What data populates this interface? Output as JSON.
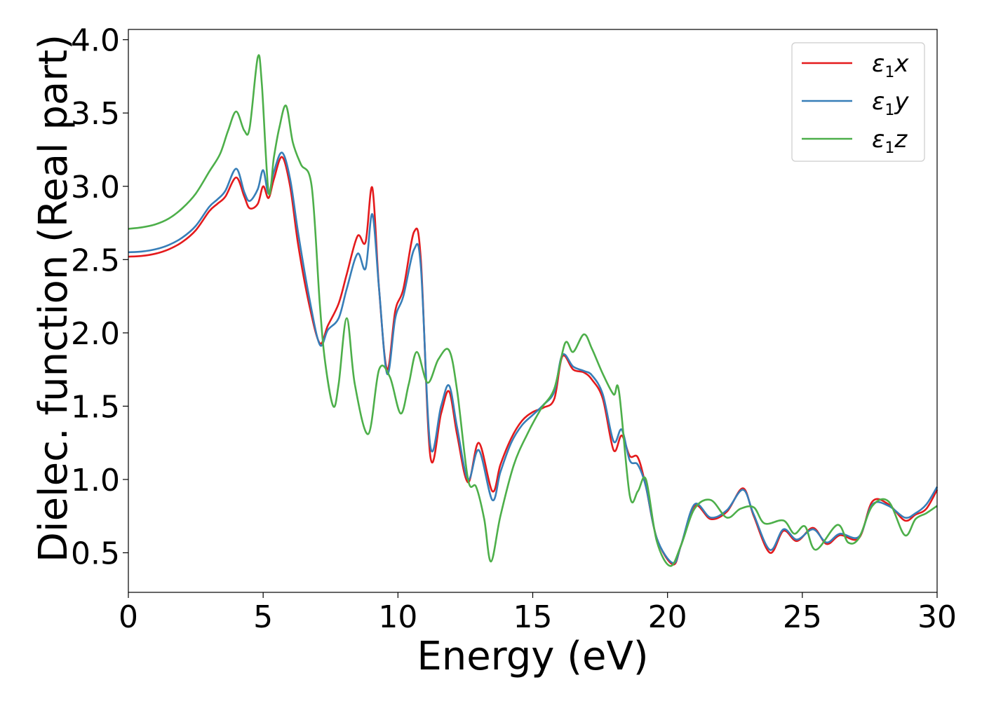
{
  "chart_data": {
    "type": "line",
    "xlabel": "Energy (eV)",
    "ylabel": "Dielec. function (Real part)",
    "xlim": [
      0,
      30
    ],
    "ylim": [
      0.23,
      4.07
    ],
    "xticks": [
      0,
      5,
      10,
      15,
      20,
      25,
      30
    ],
    "yticks": [
      0.5,
      1.0,
      1.5,
      2.0,
      2.5,
      3.0,
      3.5,
      4.0
    ],
    "xtick_labels": [
      "0",
      "5",
      "10",
      "15",
      "20",
      "25",
      "30"
    ],
    "ytick_labels": [
      "0.5",
      "1.0",
      "1.5",
      "2.0",
      "2.5",
      "3.0",
      "3.5",
      "4.0"
    ],
    "grid": false,
    "legend_position": "top-right",
    "series": [
      {
        "name": "ε1x",
        "symbol": "ε",
        "subscript": "1",
        "suffix": "x",
        "color": "#e41a1c",
        "points": [
          [
            0,
            2.52
          ],
          [
            0.5,
            2.525
          ],
          [
            1,
            2.54
          ],
          [
            1.5,
            2.57
          ],
          [
            2,
            2.62
          ],
          [
            2.5,
            2.7
          ],
          [
            3,
            2.83
          ],
          [
            3.3,
            2.88
          ],
          [
            3.6,
            2.93
          ],
          [
            4,
            3.06
          ],
          [
            4.3,
            2.93
          ],
          [
            4.5,
            2.85
          ],
          [
            4.8,
            2.88
          ],
          [
            5.0,
            3.0
          ],
          [
            5.2,
            2.92
          ],
          [
            5.4,
            3.05
          ],
          [
            5.7,
            3.2
          ],
          [
            6.0,
            3.0
          ],
          [
            6.3,
            2.6
          ],
          [
            6.7,
            2.2
          ],
          [
            7.1,
            1.93
          ],
          [
            7.4,
            2.05
          ],
          [
            7.8,
            2.2
          ],
          [
            8.1,
            2.4
          ],
          [
            8.5,
            2.66
          ],
          [
            8.8,
            2.62
          ],
          [
            9.05,
            2.99
          ],
          [
            9.3,
            2.3
          ],
          [
            9.6,
            1.75
          ],
          [
            9.9,
            2.15
          ],
          [
            10.2,
            2.3
          ],
          [
            10.6,
            2.69
          ],
          [
            10.85,
            2.5
          ],
          [
            11.2,
            1.16
          ],
          [
            11.6,
            1.45
          ],
          [
            11.9,
            1.6
          ],
          [
            12.2,
            1.3
          ],
          [
            12.6,
            0.98
          ],
          [
            13.0,
            1.25
          ],
          [
            13.5,
            0.92
          ],
          [
            13.8,
            1.1
          ],
          [
            14.2,
            1.28
          ],
          [
            14.6,
            1.4
          ],
          [
            15.0,
            1.46
          ],
          [
            15.4,
            1.49
          ],
          [
            15.8,
            1.55
          ],
          [
            16.1,
            1.84
          ],
          [
            16.5,
            1.75
          ],
          [
            16.9,
            1.73
          ],
          [
            17.2,
            1.68
          ],
          [
            17.6,
            1.55
          ],
          [
            18.0,
            1.2
          ],
          [
            18.3,
            1.3
          ],
          [
            18.6,
            1.16
          ],
          [
            18.9,
            1.15
          ],
          [
            19.2,
            0.95
          ],
          [
            19.6,
            0.6
          ],
          [
            20.2,
            0.42
          ],
          [
            20.5,
            0.55
          ],
          [
            21.0,
            0.82
          ],
          [
            21.6,
            0.73
          ],
          [
            22.2,
            0.78
          ],
          [
            22.8,
            0.94
          ],
          [
            23.2,
            0.75
          ],
          [
            23.8,
            0.5
          ],
          [
            24.3,
            0.65
          ],
          [
            24.8,
            0.58
          ],
          [
            25.4,
            0.67
          ],
          [
            25.9,
            0.56
          ],
          [
            26.4,
            0.62
          ],
          [
            27.1,
            0.6
          ],
          [
            27.6,
            0.85
          ],
          [
            28.2,
            0.83
          ],
          [
            28.8,
            0.72
          ],
          [
            29.2,
            0.76
          ],
          [
            29.6,
            0.8
          ],
          [
            30.0,
            0.93
          ]
        ]
      },
      {
        "name": "ε1y",
        "symbol": "ε",
        "subscript": "1",
        "suffix": "y",
        "color": "#377eb8",
        "points": [
          [
            0,
            2.55
          ],
          [
            0.5,
            2.555
          ],
          [
            1,
            2.57
          ],
          [
            1.5,
            2.6
          ],
          [
            2,
            2.65
          ],
          [
            2.5,
            2.73
          ],
          [
            3,
            2.86
          ],
          [
            3.3,
            2.91
          ],
          [
            3.6,
            2.97
          ],
          [
            4,
            3.12
          ],
          [
            4.3,
            2.96
          ],
          [
            4.5,
            2.9
          ],
          [
            4.8,
            2.98
          ],
          [
            5.0,
            3.11
          ],
          [
            5.2,
            2.95
          ],
          [
            5.4,
            3.1
          ],
          [
            5.7,
            3.23
          ],
          [
            6.0,
            3.05
          ],
          [
            6.3,
            2.68
          ],
          [
            6.7,
            2.25
          ],
          [
            7.1,
            1.92
          ],
          [
            7.4,
            2.02
          ],
          [
            7.8,
            2.1
          ],
          [
            8.1,
            2.3
          ],
          [
            8.5,
            2.54
          ],
          [
            8.8,
            2.44
          ],
          [
            9.05,
            2.81
          ],
          [
            9.3,
            2.3
          ],
          [
            9.6,
            1.72
          ],
          [
            9.9,
            2.1
          ],
          [
            10.2,
            2.25
          ],
          [
            10.6,
            2.57
          ],
          [
            10.85,
            2.45
          ],
          [
            11.2,
            1.23
          ],
          [
            11.6,
            1.5
          ],
          [
            11.9,
            1.64
          ],
          [
            12.2,
            1.35
          ],
          [
            12.6,
            1.0
          ],
          [
            13.0,
            1.2
          ],
          [
            13.5,
            0.86
          ],
          [
            13.8,
            1.05
          ],
          [
            14.2,
            1.25
          ],
          [
            14.6,
            1.37
          ],
          [
            15.0,
            1.44
          ],
          [
            15.4,
            1.51
          ],
          [
            15.8,
            1.6
          ],
          [
            16.1,
            1.85
          ],
          [
            16.5,
            1.77
          ],
          [
            16.9,
            1.74
          ],
          [
            17.2,
            1.71
          ],
          [
            17.6,
            1.58
          ],
          [
            18.0,
            1.26
          ],
          [
            18.3,
            1.34
          ],
          [
            18.6,
            1.13
          ],
          [
            18.9,
            1.1
          ],
          [
            19.2,
            0.95
          ],
          [
            19.6,
            0.6
          ],
          [
            20.2,
            0.43
          ],
          [
            20.5,
            0.55
          ],
          [
            21.0,
            0.83
          ],
          [
            21.6,
            0.74
          ],
          [
            22.2,
            0.79
          ],
          [
            22.8,
            0.93
          ],
          [
            23.2,
            0.76
          ],
          [
            23.8,
            0.52
          ],
          [
            24.3,
            0.66
          ],
          [
            24.8,
            0.59
          ],
          [
            25.4,
            0.66
          ],
          [
            25.9,
            0.57
          ],
          [
            26.4,
            0.63
          ],
          [
            27.1,
            0.61
          ],
          [
            27.6,
            0.83
          ],
          [
            28.2,
            0.82
          ],
          [
            28.8,
            0.74
          ],
          [
            29.2,
            0.77
          ],
          [
            29.6,
            0.83
          ],
          [
            30.0,
            0.95
          ]
        ]
      },
      {
        "name": "ε1z",
        "symbol": "ε",
        "subscript": "1",
        "suffix": "z",
        "color": "#4daf4a",
        "points": [
          [
            0,
            2.71
          ],
          [
            0.5,
            2.72
          ],
          [
            1,
            2.74
          ],
          [
            1.5,
            2.78
          ],
          [
            2,
            2.85
          ],
          [
            2.5,
            2.95
          ],
          [
            3,
            3.1
          ],
          [
            3.4,
            3.22
          ],
          [
            3.7,
            3.38
          ],
          [
            4,
            3.51
          ],
          [
            4.3,
            3.38
          ],
          [
            4.5,
            3.4
          ],
          [
            4.8,
            3.88
          ],
          [
            4.95,
            3.7
          ],
          [
            5.2,
            2.96
          ],
          [
            5.4,
            3.2
          ],
          [
            5.6,
            3.4
          ],
          [
            5.85,
            3.55
          ],
          [
            6.1,
            3.3
          ],
          [
            6.4,
            3.15
          ],
          [
            6.8,
            3.0
          ],
          [
            7.1,
            2.2
          ],
          [
            7.3,
            1.8
          ],
          [
            7.6,
            1.5
          ],
          [
            7.8,
            1.65
          ],
          [
            8.1,
            2.1
          ],
          [
            8.4,
            1.65
          ],
          [
            8.9,
            1.31
          ],
          [
            9.3,
            1.75
          ],
          [
            9.7,
            1.7
          ],
          [
            10.1,
            1.45
          ],
          [
            10.4,
            1.65
          ],
          [
            10.7,
            1.87
          ],
          [
            11.1,
            1.66
          ],
          [
            11.5,
            1.82
          ],
          [
            11.9,
            1.88
          ],
          [
            12.2,
            1.6
          ],
          [
            12.6,
            1.0
          ],
          [
            12.9,
            0.95
          ],
          [
            13.2,
            0.73
          ],
          [
            13.45,
            0.44
          ],
          [
            13.8,
            0.75
          ],
          [
            14.3,
            1.1
          ],
          [
            14.8,
            1.31
          ],
          [
            15.3,
            1.48
          ],
          [
            15.8,
            1.62
          ],
          [
            16.2,
            1.93
          ],
          [
            16.5,
            1.87
          ],
          [
            16.9,
            1.99
          ],
          [
            17.2,
            1.89
          ],
          [
            17.6,
            1.72
          ],
          [
            18.0,
            1.58
          ],
          [
            18.2,
            1.6
          ],
          [
            18.6,
            0.89
          ],
          [
            18.9,
            0.92
          ],
          [
            19.2,
            1.0
          ],
          [
            19.6,
            0.58
          ],
          [
            20.1,
            0.41
          ],
          [
            20.5,
            0.55
          ],
          [
            21.0,
            0.8
          ],
          [
            21.6,
            0.86
          ],
          [
            22.2,
            0.74
          ],
          [
            22.7,
            0.8
          ],
          [
            23.2,
            0.81
          ],
          [
            23.6,
            0.7
          ],
          [
            24.3,
            0.72
          ],
          [
            24.7,
            0.63
          ],
          [
            25.1,
            0.68
          ],
          [
            25.5,
            0.52
          ],
          [
            26.3,
            0.69
          ],
          [
            26.7,
            0.57
          ],
          [
            27.1,
            0.6
          ],
          [
            27.6,
            0.82
          ],
          [
            28.2,
            0.85
          ],
          [
            28.8,
            0.62
          ],
          [
            29.2,
            0.73
          ],
          [
            29.6,
            0.77
          ],
          [
            30.0,
            0.82
          ]
        ]
      }
    ]
  }
}
